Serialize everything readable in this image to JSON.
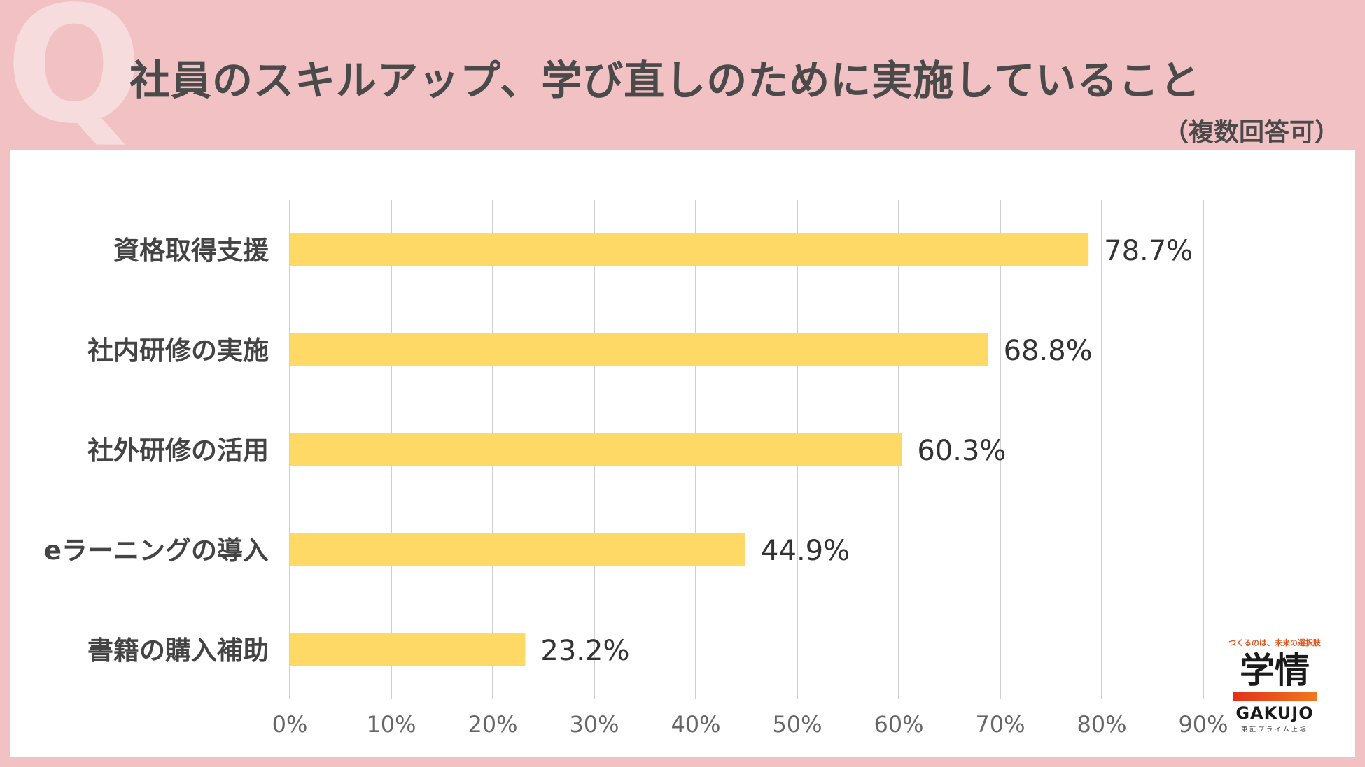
{
  "header": {
    "q_mark": "Q",
    "title": "社員のスキルアップ、学び直しのために実施していること",
    "subtitle": "（複数回答可）"
  },
  "colors": {
    "background": "#f2c1c3",
    "bar": "#ffd966",
    "text": "#444444",
    "grid": "#d0d0d0"
  },
  "chart_data": {
    "type": "bar",
    "orientation": "horizontal",
    "categories": [
      "資格取得支援",
      "社内研修の実施",
      "社外研修の活用",
      "eラーニングの導入",
      "書籍の購入補助"
    ],
    "values": [
      78.7,
      68.8,
      60.3,
      44.9,
      23.2
    ],
    "value_labels": [
      "78.7%",
      "68.8%",
      "60.3%",
      "44.9%",
      "23.2%"
    ],
    "xlim": [
      0,
      90
    ],
    "ticks": [
      0,
      10,
      20,
      30,
      40,
      50,
      60,
      70,
      80,
      90
    ],
    "tick_labels": [
      "0%",
      "10%",
      "20%",
      "30%",
      "40%",
      "50%",
      "60%",
      "70%",
      "80%",
      "90%"
    ],
    "grid": true,
    "legend": "none"
  },
  "brand": {
    "tagline": "つくるのは、未来の選択肢",
    "mark": "学情",
    "name": "GAKUJO",
    "sub": "東証プライム上場"
  }
}
